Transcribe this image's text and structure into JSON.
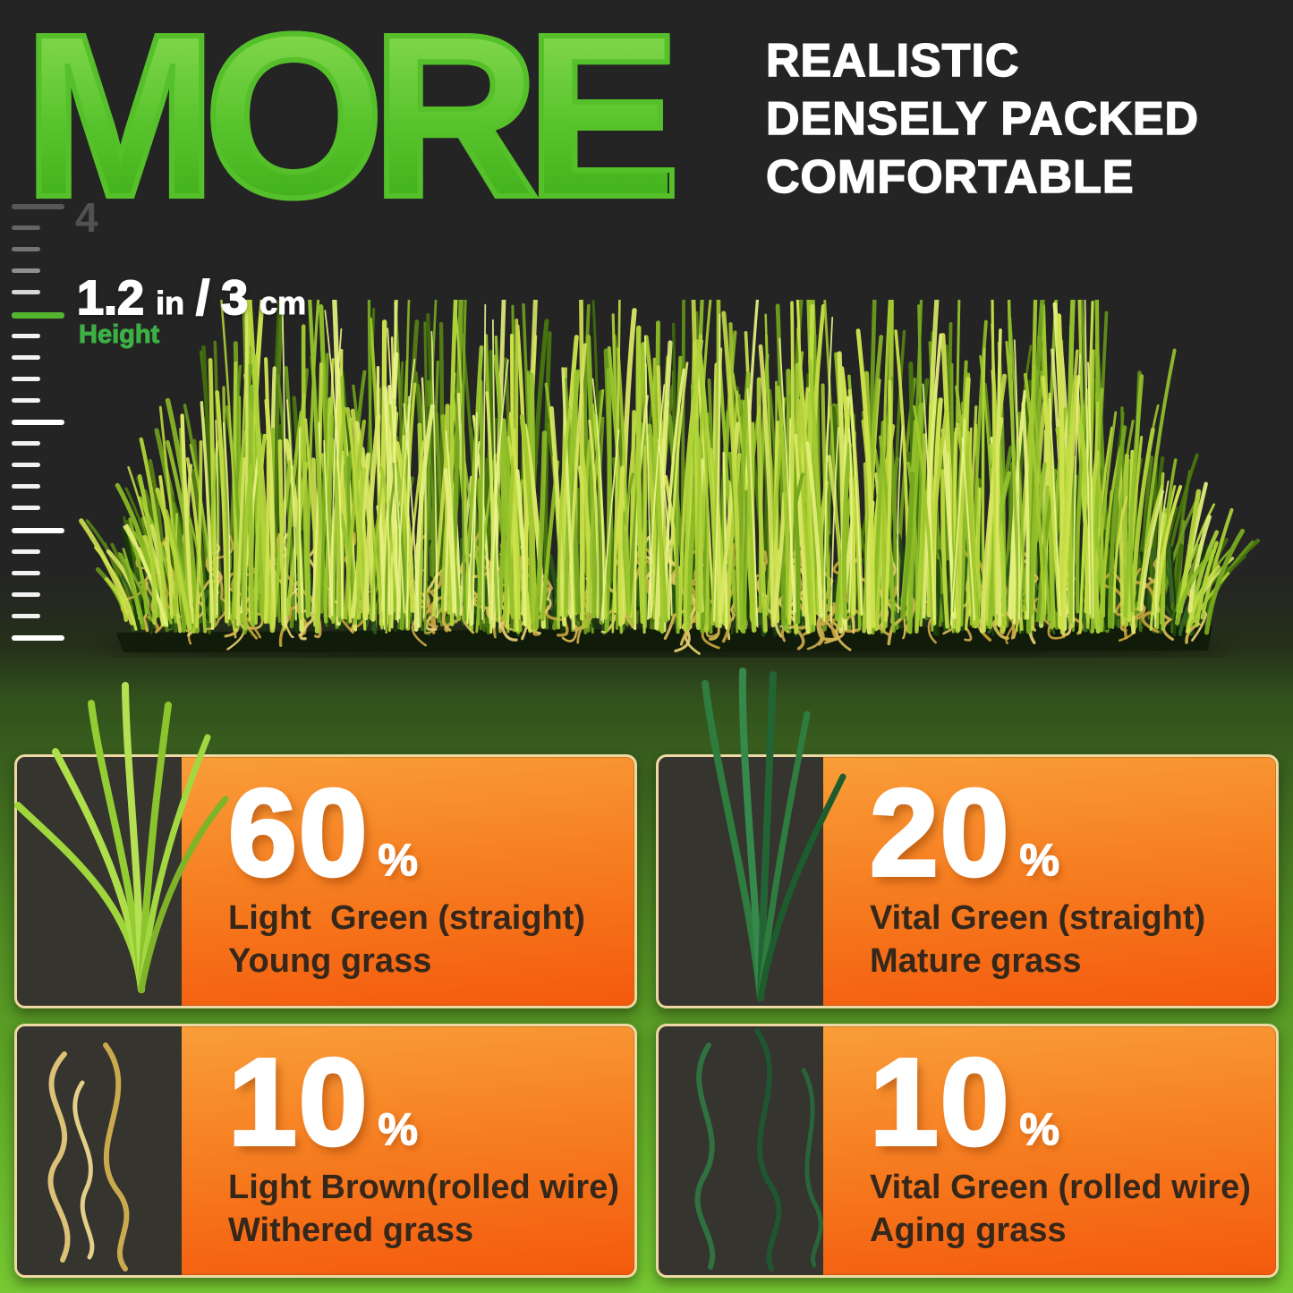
{
  "header": {
    "title": "MORE",
    "subtitle_lines": [
      "REALISTIC",
      "DENSELY PACKED",
      "COMFORTABLE"
    ]
  },
  "ruler": {
    "top_label": "4"
  },
  "measurement": {
    "value_in": "1.2",
    "unit_in": "in",
    "slash": "/",
    "value_cm": "3",
    "unit_cm": "cm",
    "label": "Height"
  },
  "cards": [
    {
      "percent": "60",
      "percent_sign": "%",
      "line1": "Light  Green (straight)",
      "line2": "Young grass",
      "blade": "light-green-straight"
    },
    {
      "percent": "20",
      "percent_sign": "%",
      "line1": "Vital Green (straight)",
      "line2": "Mature grass",
      "blade": "vital-green-straight"
    },
    {
      "percent": "10",
      "percent_sign": "%",
      "line1": "Light Brown(rolled wire)",
      "line2": "Withered grass",
      "blade": "light-brown-rolled-wire"
    },
    {
      "percent": "10",
      "percent_sign": "%",
      "line1": "Vital Green (rolled wire)",
      "line2": "Aging grass",
      "blade": "vital-green-rolled-wire"
    }
  ],
  "colors": {
    "background_top": "#242424",
    "background_bottom": "#77c933",
    "title_gradient_top": "#8edd55",
    "title_gradient_bottom": "#3aa914",
    "subtitle_text": "#ffffff",
    "ruler_tick_white": "#ffffff",
    "ruler_tick_green": "#55b42e",
    "ruler_number_gray": "#515151",
    "height_label_green": "#3cb044",
    "card_orange_top": "#f9a13b",
    "card_orange_bottom": "#f4590d",
    "card_border_cream": "#eed9a4",
    "card_panel_dark": "#35342f",
    "card_number_white": "#ffffff",
    "card_desc_brown": "#35271a"
  }
}
